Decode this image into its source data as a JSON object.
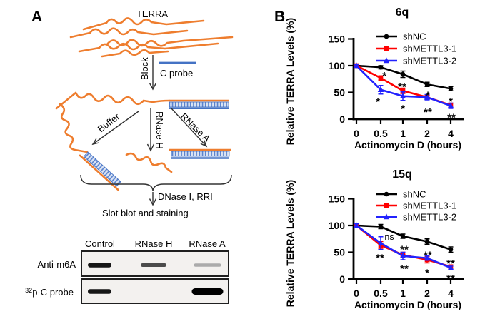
{
  "figure": {
    "panel_a_label": "A",
    "panel_b_label": "B"
  },
  "panel_a": {
    "terra_label": "TERRA",
    "block_label": "Block",
    "c_probe_label": "C probe",
    "buffer_label": "Buffer",
    "rnase_h_label": "RNase H",
    "rnase_a_label": "RNase A",
    "dnase_label": "DNase Ⅰ, RRI",
    "slot_blot_label": "Slot blot and staining",
    "colors": {
      "rna_orange": "#EE7D2E",
      "probe_blue": "#4472C4",
      "hatch_blue": "#5B83CE"
    },
    "blot": {
      "columns": [
        "Control",
        "RNase H",
        "RNase A"
      ],
      "rows": [
        {
          "sup": "",
          "label": "Anti-m6A"
        },
        {
          "sup": "32",
          "label": "p-C probe"
        }
      ],
      "bands": [
        {
          "row": 0,
          "lane": 0,
          "intensity": "strong"
        },
        {
          "row": 0,
          "lane": 1,
          "intensity": "medium"
        },
        {
          "row": 0,
          "lane": 2,
          "intensity": "faint"
        },
        {
          "row": 1,
          "lane": 0,
          "intensity": "strong"
        },
        {
          "row": 1,
          "lane": 2,
          "intensity": "strongest"
        }
      ]
    }
  },
  "chart_data": [
    {
      "type": "line",
      "title": "6q",
      "xlabel": "Actinomycin D (hours)",
      "ylabel": "Relative TERRA Levels (%)",
      "x_ticklabels": [
        "0",
        "0.5",
        "1",
        "2",
        "4"
      ],
      "y_ticks": [
        0,
        50,
        100,
        150
      ],
      "ylim": [
        0,
        160
      ],
      "grid": false,
      "legend_position": "top-right",
      "series": [
        {
          "name": "shNC",
          "color": "#000000",
          "marker": "circle",
          "values": [
            100,
            97,
            84,
            65,
            57
          ],
          "errors": [
            2,
            3,
            6,
            4,
            4
          ]
        },
        {
          "name": "shMETTL3-1",
          "color": "#FF0000",
          "marker": "square",
          "values": [
            100,
            77,
            53,
            41,
            26
          ],
          "errors": [
            2,
            4,
            5,
            4,
            4
          ]
        },
        {
          "name": "shMETTL3-2",
          "color": "#2222FE",
          "marker": "triangle",
          "values": [
            100,
            55,
            43,
            41,
            25
          ],
          "errors": [
            2,
            8,
            8,
            5,
            5
          ]
        }
      ],
      "annotations": [
        {
          "xi": 1,
          "y": 89,
          "text": "*",
          "dx": 5
        },
        {
          "xi": 1,
          "y": 40,
          "text": "*",
          "dx": -4
        },
        {
          "xi": 2,
          "y": 68,
          "text": "**",
          "dx": -1
        },
        {
          "xi": 2,
          "y": 27,
          "text": "*",
          "dx": 0
        },
        {
          "xi": 3,
          "y": 52,
          "text": "*",
          "dx": 1
        },
        {
          "xi": 3,
          "y": 21,
          "text": "**",
          "dx": 1
        },
        {
          "xi": 4,
          "y": 41,
          "text": "*",
          "dx": 0
        },
        {
          "xi": 4,
          "y": 11,
          "text": "**",
          "dx": 1
        }
      ]
    },
    {
      "type": "line",
      "title": "15q",
      "xlabel": "Actinomycin D (hours)",
      "ylabel": "Relative TERRA Levels (%)",
      "x_ticklabels": [
        "0",
        "0.5",
        "1",
        "2",
        "4"
      ],
      "y_ticks": [
        0,
        50,
        100,
        150
      ],
      "ylim": [
        0,
        160
      ],
      "grid": false,
      "legend_position": "top-right",
      "series": [
        {
          "name": "shNC",
          "color": "#000000",
          "marker": "circle",
          "values": [
            100,
            98,
            80,
            70,
            55
          ],
          "errors": [
            2,
            4,
            4,
            5,
            5
          ]
        },
        {
          "name": "shMETTL3-1",
          "color": "#FF0000",
          "marker": "square",
          "values": [
            100,
            63,
            45,
            36,
            23
          ],
          "errors": [
            3,
            7,
            5,
            6,
            3
          ]
        },
        {
          "name": "shMETTL3-2",
          "color": "#2222FE",
          "marker": "triangle",
          "values": [
            100,
            67,
            43,
            39,
            21
          ],
          "errors": [
            3,
            12,
            7,
            4,
            3
          ]
        }
      ],
      "annotations": [
        {
          "xi": 1,
          "y": 78,
          "text": "ns",
          "dx": 12
        },
        {
          "xi": 1,
          "y": 47,
          "text": "**",
          "dx": -1
        },
        {
          "xi": 2,
          "y": 63,
          "text": "**",
          "dx": 2
        },
        {
          "xi": 2,
          "y": 27,
          "text": "**",
          "dx": 2
        },
        {
          "xi": 3,
          "y": 52,
          "text": "**",
          "dx": 1
        },
        {
          "xi": 3,
          "y": 19,
          "text": "*",
          "dx": 0
        },
        {
          "xi": 4,
          "y": 37,
          "text": "**",
          "dx": 0
        },
        {
          "xi": 4,
          "y": 9,
          "text": "**",
          "dx": 0
        }
      ]
    }
  ]
}
